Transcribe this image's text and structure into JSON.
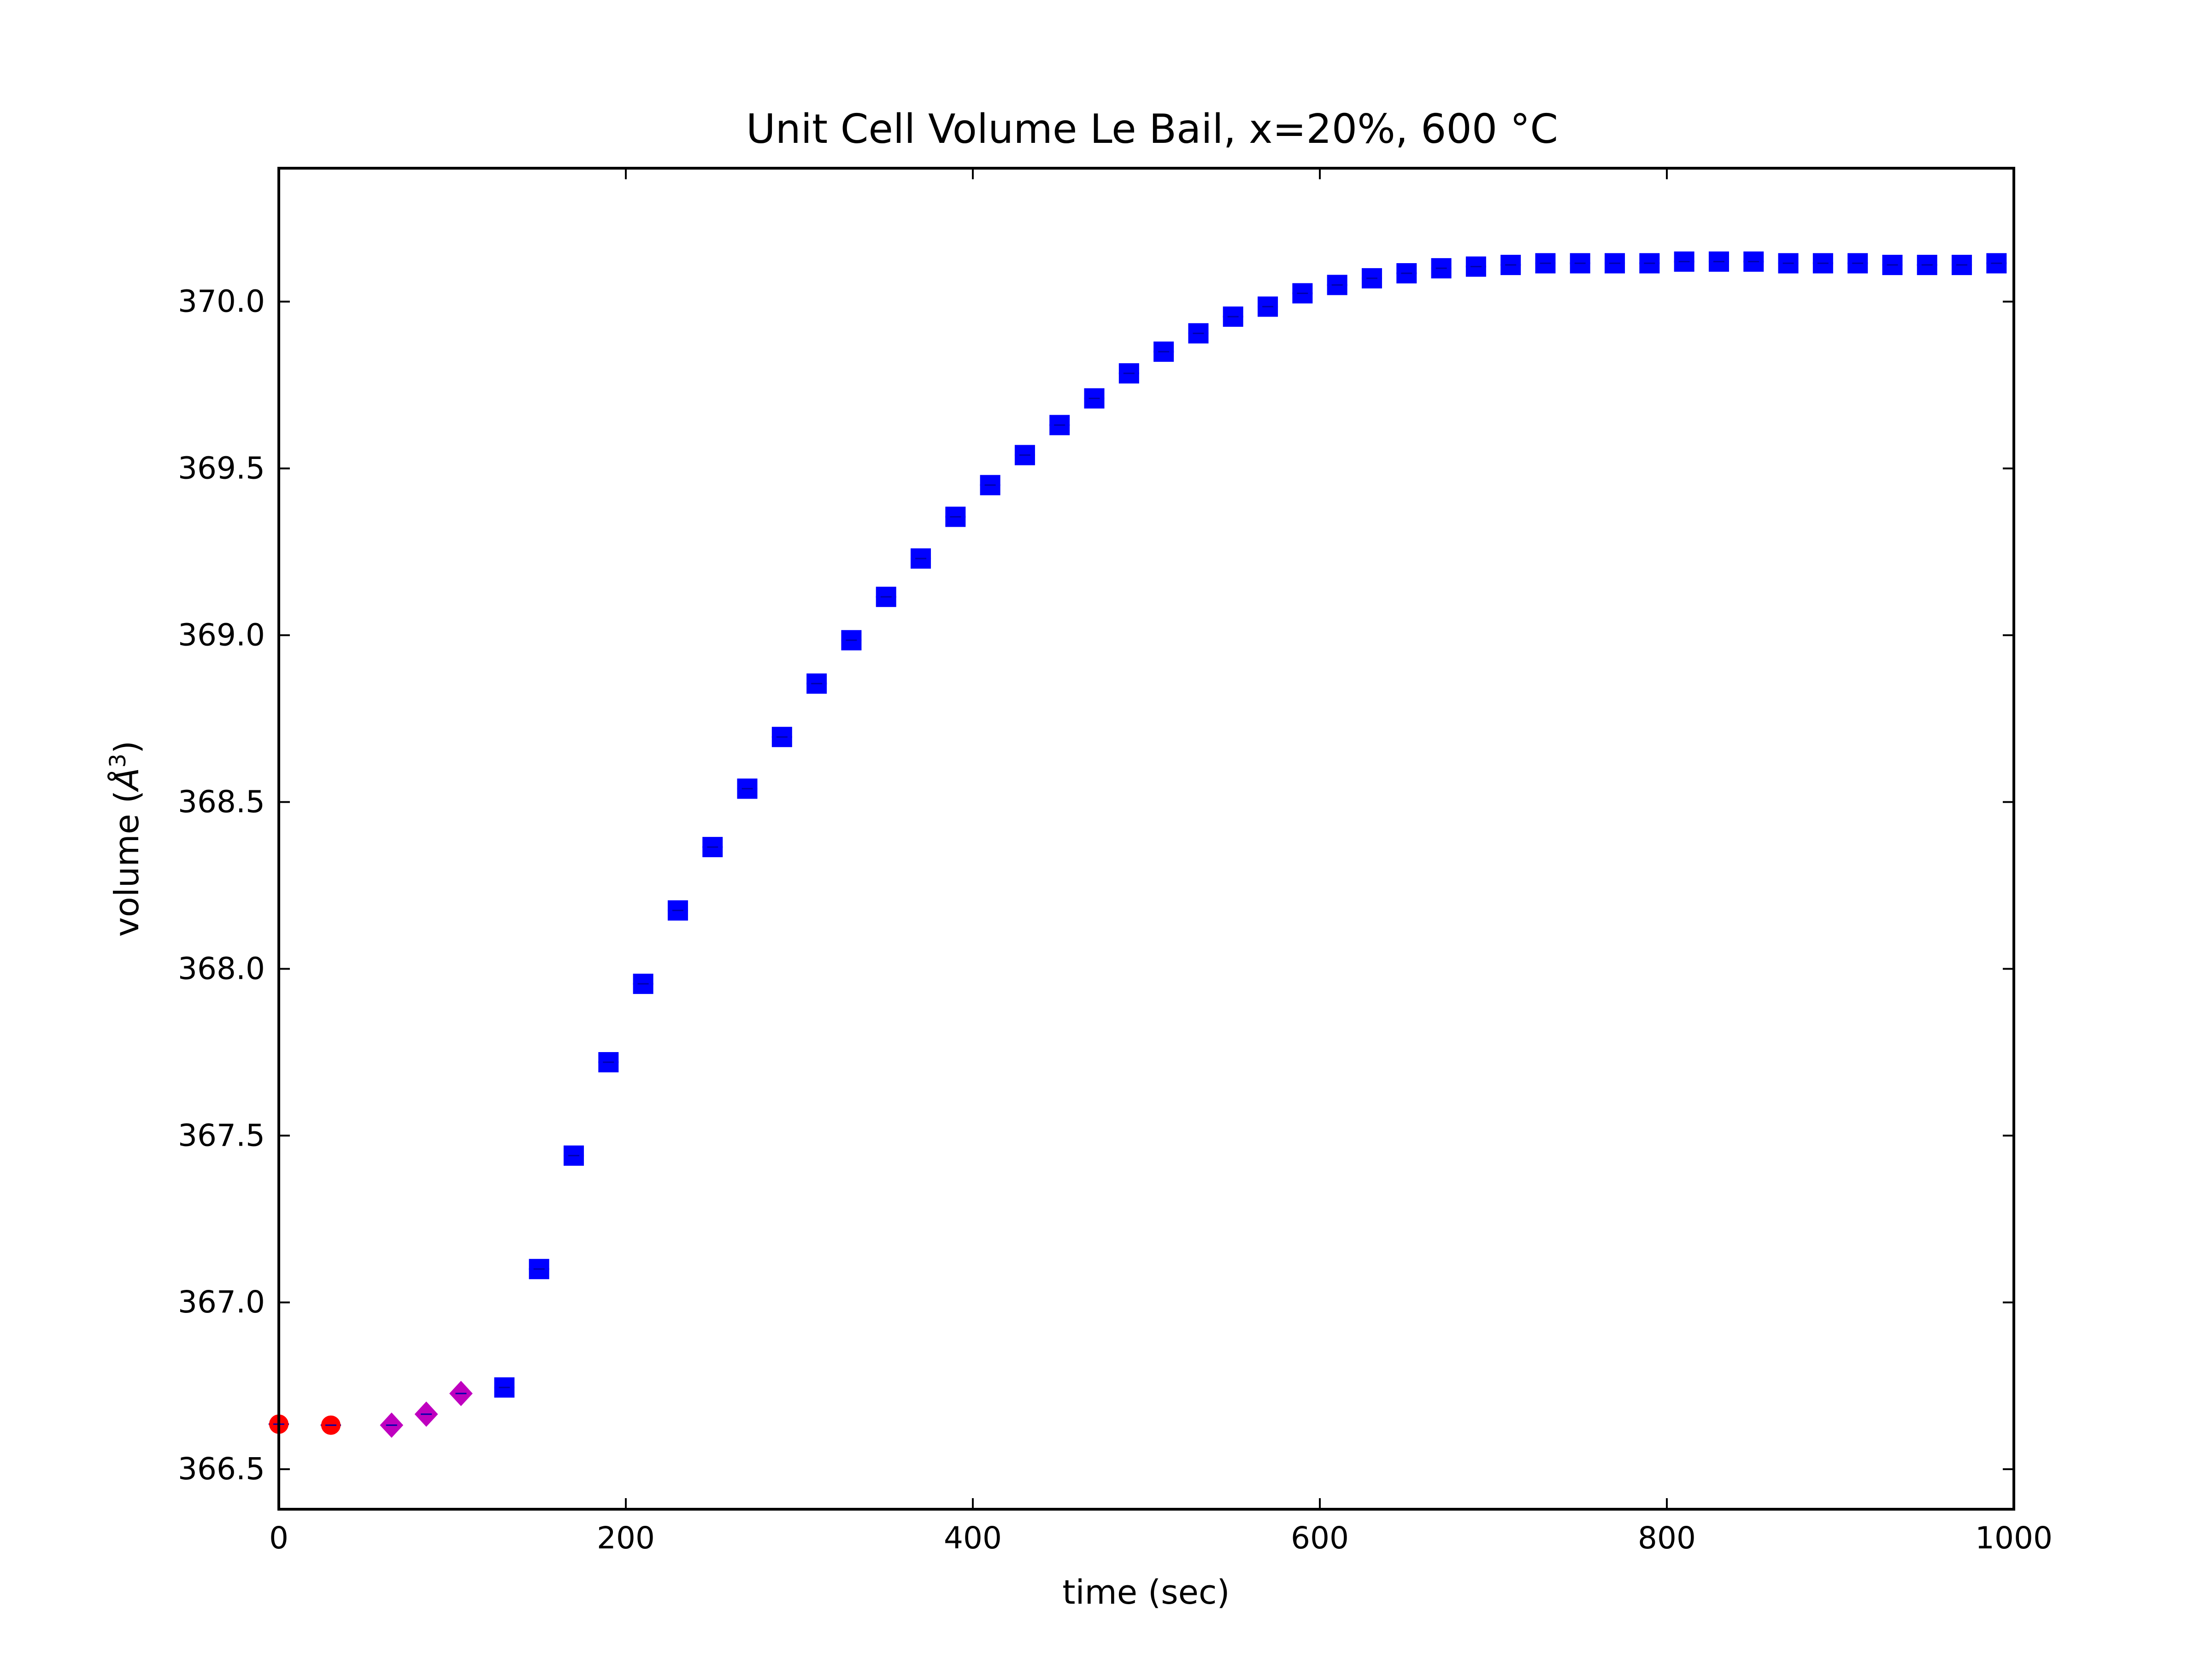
{
  "chart_data": {
    "type": "scatter",
    "title": "Unit Cell Volume Le Bail, x=20%, 600 °C",
    "xlabel": "time (sec)",
    "ylabel_main": "volume (",
    "ylabel_unit": "Å",
    "ylabel_exp": "3",
    "ylabel_close": ")",
    "xlim": [
      0,
      1000
    ],
    "ylim": [
      366.38,
      370.4
    ],
    "xticks": [
      0,
      200,
      400,
      600,
      800,
      1000
    ],
    "xtick_labels": [
      "0",
      "200",
      "400",
      "600",
      "800",
      "1000"
    ],
    "yticks": [
      366.5,
      367.0,
      367.5,
      368.0,
      368.5,
      369.0,
      369.5,
      370.0
    ],
    "ytick_labels": [
      "366.5",
      "367.0",
      "367.5",
      "368.0",
      "368.5",
      "369.0",
      "369.5",
      "370.0"
    ],
    "grid": false,
    "series": [
      {
        "marker": "circle",
        "color": "#ff0000",
        "x": [
          0,
          30
        ],
        "y": [
          366.635,
          366.632
        ],
        "yerr": [
          0.01,
          0.01
        ]
      },
      {
        "marker": "diamond",
        "color": "#bf00bf",
        "x": [
          65,
          85,
          105
        ],
        "y": [
          366.632,
          366.665,
          366.727
        ],
        "yerr": [
          0.015,
          0.015,
          0.015
        ]
      },
      {
        "marker": "square",
        "color": "#0000ff",
        "x": [
          130,
          150,
          170,
          190,
          210,
          230,
          250,
          270,
          290,
          310,
          330,
          350,
          370,
          390,
          410,
          430,
          450,
          470,
          490,
          510,
          530,
          550,
          570,
          590,
          610,
          630,
          650,
          670,
          690,
          710,
          730,
          750,
          770,
          790,
          810,
          830,
          850,
          870,
          890,
          910,
          930,
          950,
          970,
          990
        ],
        "y": [
          366.745,
          367.1,
          367.44,
          367.72,
          367.955,
          368.175,
          368.365,
          368.54,
          368.695,
          368.855,
          368.985,
          369.115,
          369.23,
          369.355,
          369.45,
          369.54,
          369.63,
          369.71,
          369.785,
          369.85,
          369.905,
          369.955,
          369.985,
          370.025,
          370.05,
          370.07,
          370.085,
          370.1,
          370.105,
          370.11,
          370.115,
          370.115,
          370.115,
          370.115,
          370.12,
          370.12,
          370.12,
          370.115,
          370.115,
          370.115,
          370.11,
          370.11,
          370.11,
          370.115
        ],
        "yerr": [
          0.01,
          0.01,
          0.01,
          0.01,
          0.01,
          0.01,
          0.01,
          0.01,
          0.01,
          0.01,
          0.01,
          0.01,
          0.01,
          0.01,
          0.01,
          0.01,
          0.01,
          0.01,
          0.01,
          0.01,
          0.01,
          0.01,
          0.01,
          0.01,
          0.01,
          0.01,
          0.01,
          0.01,
          0.01,
          0.01,
          0.01,
          0.01,
          0.01,
          0.01,
          0.01,
          0.01,
          0.01,
          0.01,
          0.01,
          0.01,
          0.01,
          0.01,
          0.01,
          0.01
        ]
      }
    ]
  }
}
